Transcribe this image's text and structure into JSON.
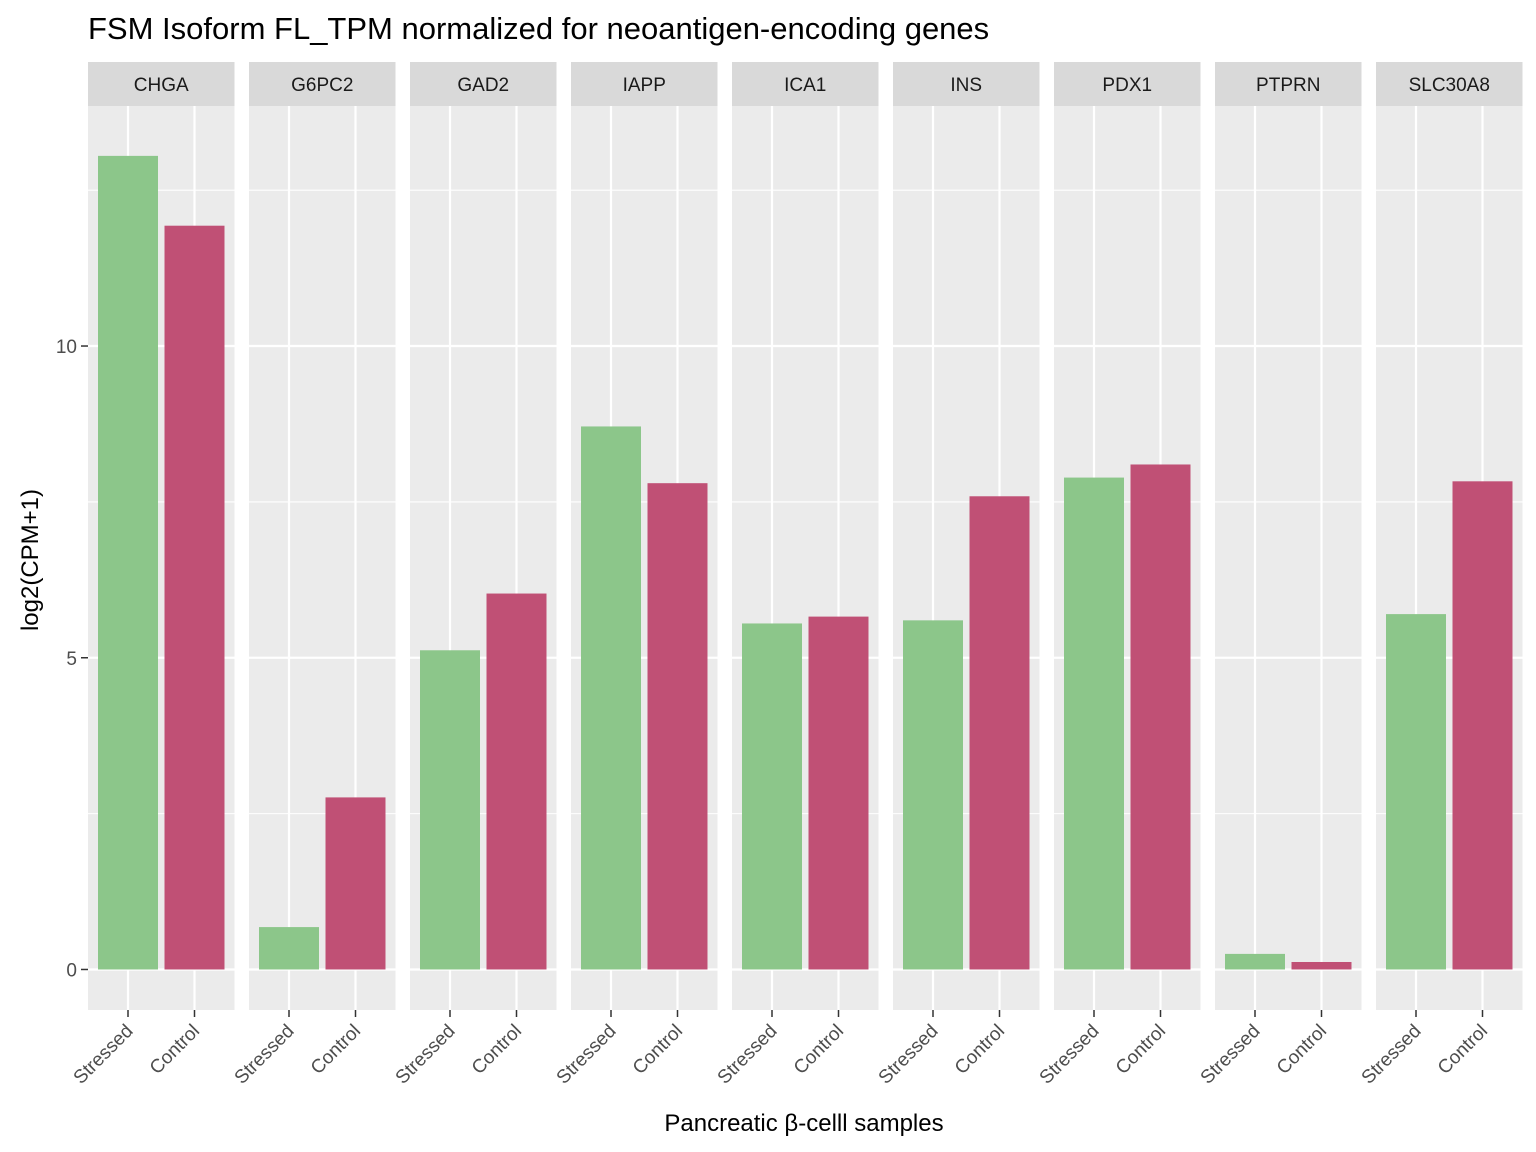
{
  "chart_data": {
    "type": "bar",
    "title": "FSM Isoform FL_TPM normalized for neoantigen-encoding genes",
    "xlabel": "Pancreatic β-celll samples",
    "ylabel": "log2(CPM+1)",
    "ylim": [
      -0.65,
      13.85
    ],
    "yticks": [
      0,
      5,
      10
    ],
    "grid": true,
    "categories": [
      "Stressed",
      "Control"
    ],
    "colors": {
      "Stressed": "#8cc68a",
      "Control": "#c05075"
    },
    "facets": [
      {
        "name": "CHGA",
        "values": [
          13.05,
          11.93
        ]
      },
      {
        "name": "G6PC2",
        "values": [
          0.68,
          2.76
        ]
      },
      {
        "name": "GAD2",
        "values": [
          5.12,
          6.03
        ]
      },
      {
        "name": "IAPP",
        "values": [
          8.71,
          7.8
        ]
      },
      {
        "name": "ICA1",
        "values": [
          5.55,
          5.66
        ]
      },
      {
        "name": "INS",
        "values": [
          5.6,
          7.59
        ]
      },
      {
        "name": "PDX1",
        "values": [
          7.89,
          8.1
        ]
      },
      {
        "name": "PTPRN",
        "values": [
          0.25,
          0.12
        ]
      },
      {
        "name": "SLC30A8",
        "values": [
          5.7,
          7.83
        ]
      }
    ]
  }
}
